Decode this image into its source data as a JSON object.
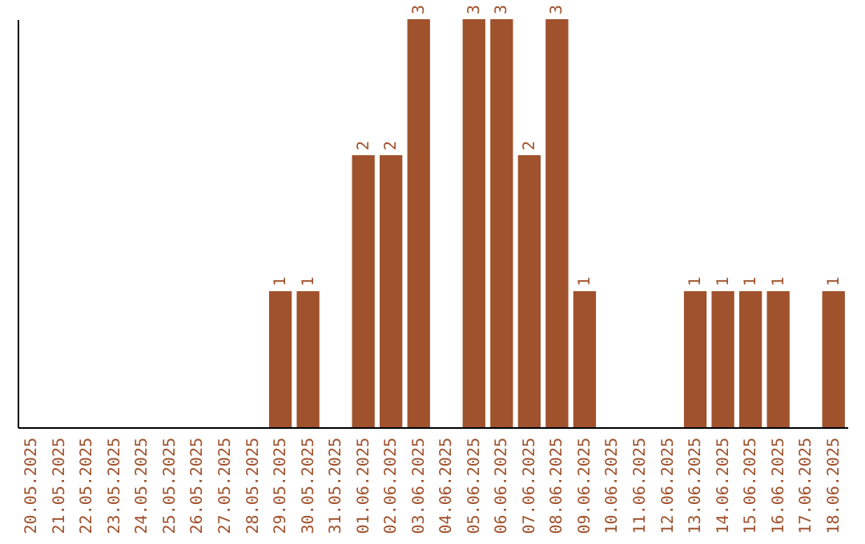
{
  "chart_data": {
    "type": "bar",
    "categories": [
      "20.05.2025",
      "21.05.2025",
      "22.05.2025",
      "23.05.2025",
      "24.05.2025",
      "25.05.2025",
      "26.05.2025",
      "27.05.2025",
      "28.05.2025",
      "29.05.2025",
      "30.05.2025",
      "31.05.2025",
      "01.06.2025",
      "02.06.2025",
      "03.06.2025",
      "04.06.2025",
      "05.06.2025",
      "06.06.2025",
      "07.06.2025",
      "08.06.2025",
      "09.06.2025",
      "10.06.2025",
      "11.06.2025",
      "12.06.2025",
      "13.06.2025",
      "14.06.2025",
      "15.06.2025",
      "16.06.2025",
      "17.06.2025",
      "18.06.2025"
    ],
    "values": [
      0,
      0,
      0,
      0,
      0,
      0,
      0,
      0,
      0,
      1,
      1,
      0,
      2,
      2,
      3,
      0,
      3,
      3,
      2,
      3,
      1,
      0,
      0,
      0,
      1,
      1,
      1,
      1,
      0,
      1
    ],
    "value_labels": [
      null,
      null,
      null,
      null,
      null,
      null,
      null,
      null,
      null,
      "1",
      "1",
      null,
      "2",
      "2",
      "3",
      null,
      "3",
      "3",
      "2",
      "3",
      "1",
      null,
      null,
      null,
      "1",
      "1",
      "1",
      "1",
      null,
      "1"
    ],
    "color": "#a0522d",
    "ylim": [
      0,
      3
    ],
    "grid": false
  }
}
